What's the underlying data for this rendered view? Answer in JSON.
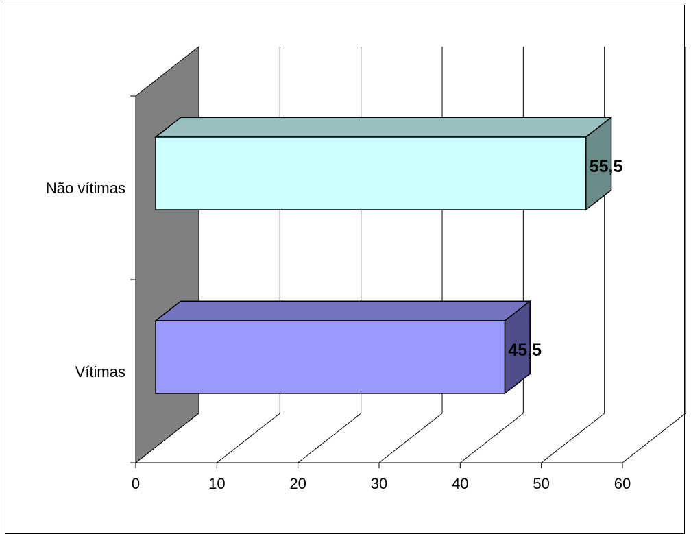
{
  "chart_data": {
    "type": "bar",
    "orientation": "horizontal",
    "three_d": true,
    "categories": [
      "Não vítimas",
      "Vítimas"
    ],
    "values": [
      55.5,
      45.5
    ],
    "data_labels": [
      "55,5",
      "45,5"
    ],
    "bar_colors": [
      {
        "front": "#ccffff",
        "top": "#99c0c0",
        "side": "#6b8a8a"
      },
      {
        "front": "#9999ff",
        "top": "#7474c0",
        "side": "#4e4e8a"
      }
    ],
    "wall_color": "#808080",
    "xlim": [
      0,
      60
    ],
    "xticks": [
      0,
      10,
      20,
      30,
      40,
      50,
      60
    ],
    "xtick_labels": [
      "0",
      "10",
      "20",
      "30",
      "40",
      "50",
      "60"
    ],
    "grid": true,
    "legend": "none",
    "title": "",
    "xlabel": "",
    "ylabel": ""
  }
}
